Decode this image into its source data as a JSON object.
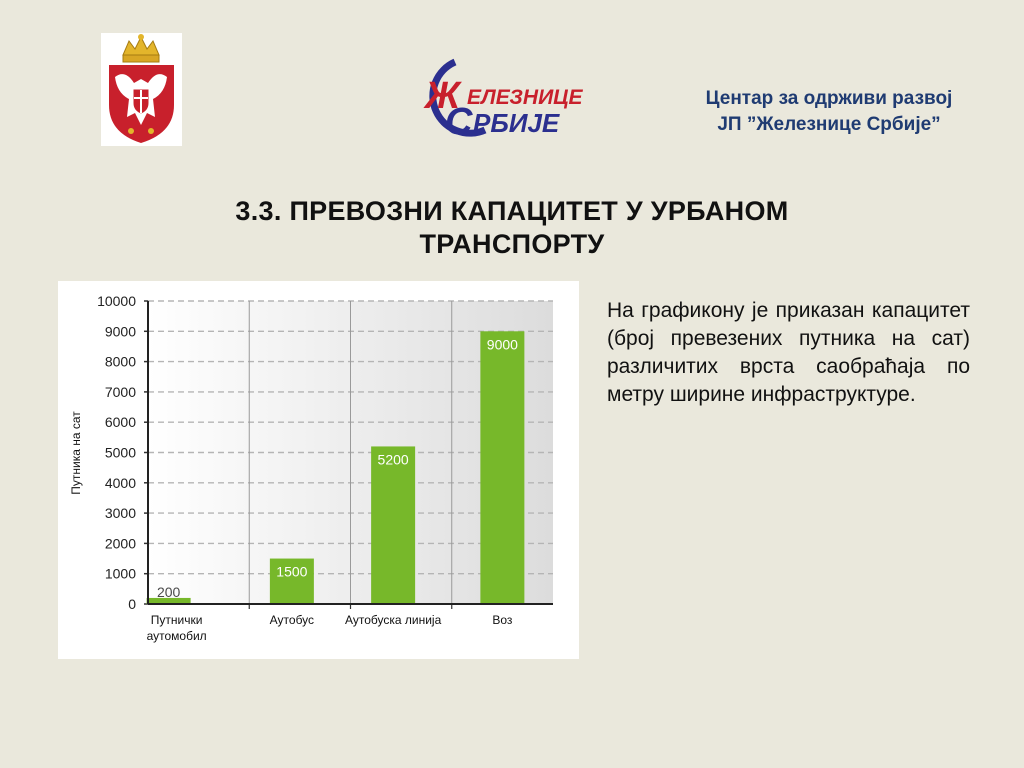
{
  "header": {
    "center_line1": "Центар за одрживи развој",
    "center_line2": "ЈП ”Железнице Србије”",
    "rail_logo_line1": "ЕЛЕЗНИЦЕ",
    "rail_logo_line2": "РБИЈЕ",
    "rail_logo_mark": "Ж",
    "rail_logo_s": "С",
    "coat_icon": "serbia-coat-of-arms",
    "brand_color": "#c8202c",
    "brand_blue": "#2b2f8f"
  },
  "slide": {
    "title_line1": "3.3. ПРЕВОЗНИ КАПАЦИТЕТ У УРБАНОМ",
    "title_line2": "ТРАНСПОРТУ",
    "description": "На графикону  је приказан капацитет (број превезених путника на сат) различитих врста саобраћаја по метру ширине инфраструктуре."
  },
  "chart_data": {
    "type": "bar",
    "categories": [
      [
        "Путнички",
        "аутомобил"
      ],
      [
        "Аутобус"
      ],
      [
        "Аутобуска линија"
      ],
      [
        "Воз"
      ]
    ],
    "values": [
      200,
      1500,
      5200,
      9000
    ],
    "data_labels": [
      "200",
      "1500",
      "5200",
      "9000"
    ],
    "ylabel": "Путника на сат",
    "ylim": [
      0,
      10000
    ],
    "yticks": [
      0,
      1000,
      2000,
      3000,
      4000,
      5000,
      6000,
      7000,
      8000,
      9000,
      10000
    ],
    "bar_color": "#77b82a",
    "grid": true
  }
}
